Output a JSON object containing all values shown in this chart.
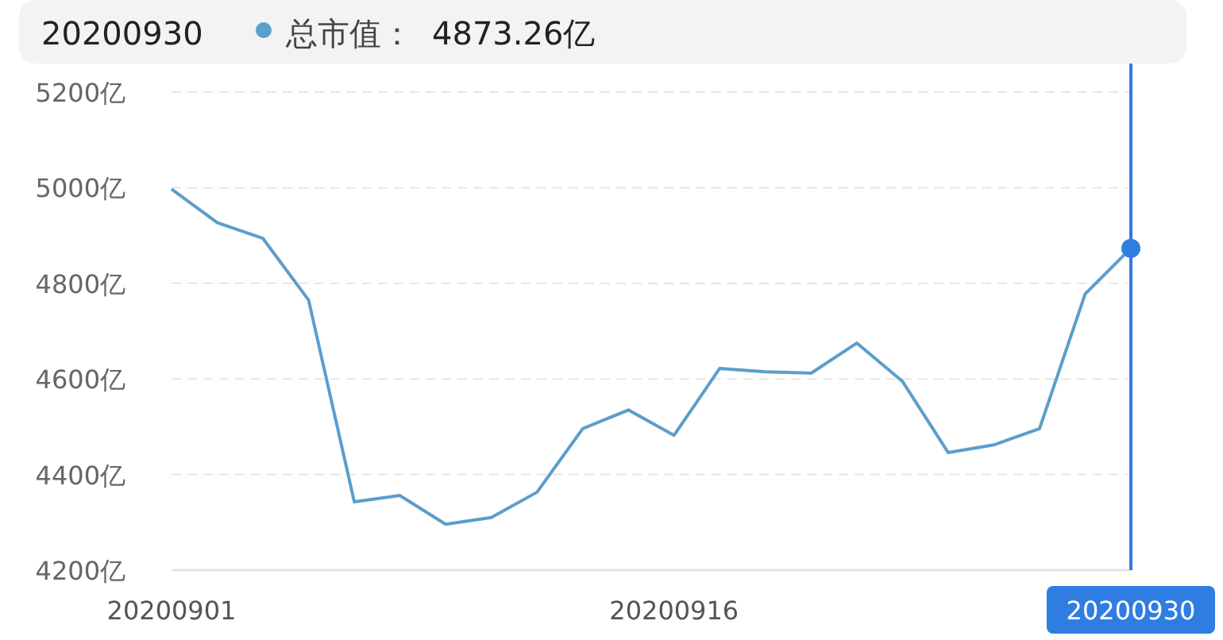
{
  "chart_data": {
    "type": "line",
    "categories": [
      "20200901",
      null,
      null,
      null,
      null,
      null,
      null,
      null,
      null,
      null,
      null,
      "20200916",
      null,
      null,
      null,
      null,
      null,
      null,
      null,
      null,
      null,
      "20200930"
    ],
    "series": [
      {
        "name": "总市值：",
        "color": "#5b9ec9",
        "values": [
          4997,
          4927,
          4894,
          4765,
          4343,
          4356,
          4296,
          4310,
          4363,
          4496,
          4535,
          4482,
          4622,
          4615,
          4612,
          4675,
          4595,
          4446,
          4462,
          4496,
          4778,
          4873.26
        ]
      },
      {
        "type": "scatter",
        "color": "#2f7de1",
        "x": [
          "20200930"
        ],
        "values": [
          4873.26
        ],
        "marker": "circle"
      }
    ],
    "ylim": [
      4200,
      5200
    ],
    "yticks": [
      {
        "value": 4200,
        "label": "4200亿"
      },
      {
        "value": 4400,
        "label": "4400亿"
      },
      {
        "value": 4600,
        "label": "4600亿"
      },
      {
        "value": 4800,
        "label": "4800亿"
      },
      {
        "value": 5000,
        "label": "5000亿"
      },
      {
        "value": 5200,
        "label": "5200亿"
      }
    ],
    "grid": "y",
    "marker": "none",
    "ref_lines": [
      {
        "axis": "x",
        "value": "20200930",
        "color": "#2f7de1"
      }
    ],
    "annotations": [
      "4873.26亿"
    ]
  }
}
